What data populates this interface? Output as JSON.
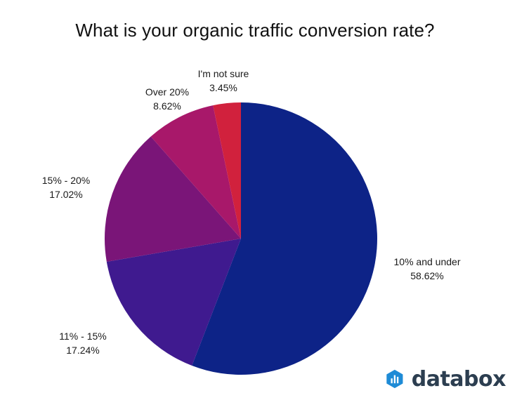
{
  "chart_data": {
    "type": "pie",
    "title": "What is your organic traffic conversion rate?",
    "slices": [
      {
        "name": "10% and under",
        "label": "58.62%",
        "value": 58.62,
        "color": "#0d2387"
      },
      {
        "name": "11% - 15%",
        "label": "17.24%",
        "value": 17.24,
        "color": "#3f1a8f"
      },
      {
        "name": "15% - 20%",
        "label": "17.02%",
        "value": 17.02,
        "color": "#7a1578"
      },
      {
        "name": "Over 20%",
        "label": "8.62%",
        "value": 8.62,
        "color": "#a8186a"
      },
      {
        "name": "I'm not sure",
        "label": "3.45%",
        "value": 3.45,
        "color": "#d1213d"
      }
    ],
    "start": "12 o'clock",
    "direction": "clockwise",
    "legend": "none"
  },
  "branding": {
    "logo_text": "databox",
    "logo_icon": "databox-logo-icon",
    "logo_color": "#2c3e50",
    "logo_accent": "#1e8bd6"
  }
}
